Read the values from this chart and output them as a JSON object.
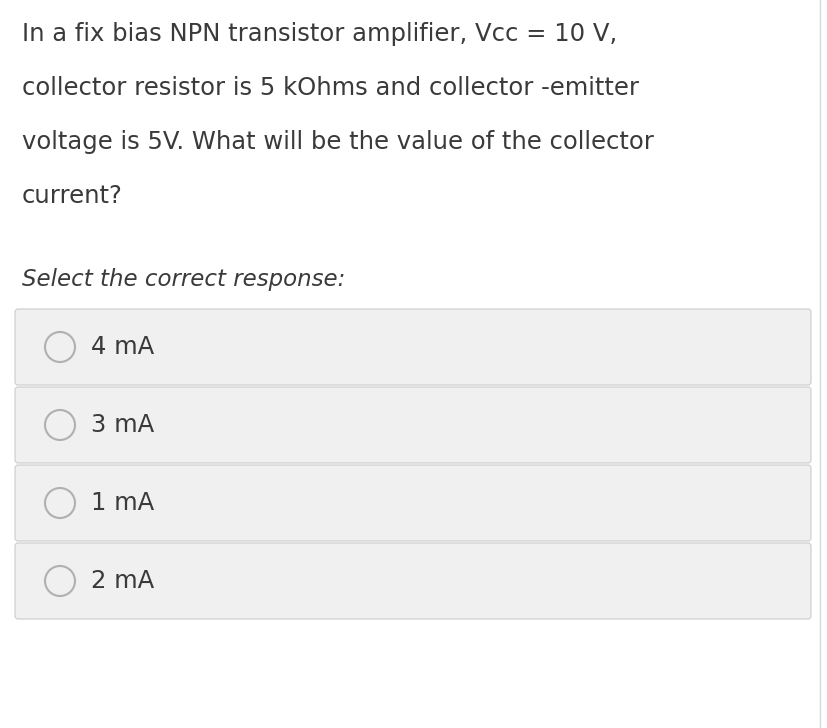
{
  "background_color": "#ffffff",
  "page_bg_color": "#f5f5f5",
  "question_text_lines": [
    "In a fix bias NPN transistor amplifier, Vcc = 10 V,",
    "collector resistor is 5 kOhms and collector -emitter",
    "voltage is 5V. What will be the value of the collector",
    "current?"
  ],
  "subtitle_text": "Select the correct response:",
  "options": [
    "4 mA",
    "3 mA",
    "1 mA",
    "2 mA"
  ],
  "option_bg_color": "#f0f0f0",
  "option_border_color": "#cccccc",
  "text_color": "#3a3a3a",
  "circle_edge_color": "#b0b0b0",
  "circle_face_color": "#f0f0f0",
  "question_font_size": 17.5,
  "subtitle_font_size": 16.5,
  "option_font_size": 17.5,
  "right_border_color": "#d8d8d8"
}
